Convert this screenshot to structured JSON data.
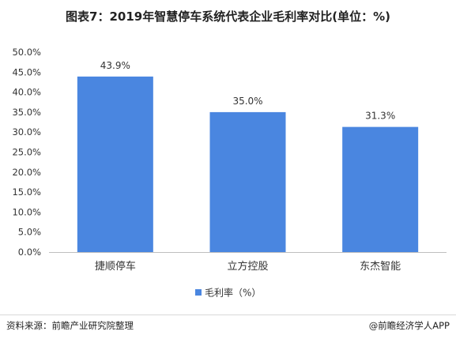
{
  "title": "图表7：2019年智慧停车系统代表企业毛利率对比(单位：%)",
  "footer": {
    "source": "资料来源：前瞻产业研究院整理",
    "brand": "@前瞻经济学人APP"
  },
  "colors": {
    "bar": "#4a86e0",
    "grid": "#d9d9d9"
  },
  "chart_data": {
    "type": "bar",
    "categories": [
      "捷顺停车",
      "立方控股",
      "东杰智能"
    ],
    "values": [
      43.9,
      35.0,
      31.3
    ],
    "data_labels": [
      "43.9%",
      "35.0%",
      "31.3%"
    ],
    "y_ticks": [
      "0.0%",
      "5.0%",
      "10.0%",
      "15.0%",
      "20.0%",
      "25.0%",
      "30.0%",
      "35.0%",
      "40.0%",
      "45.0%",
      "50.0%"
    ],
    "ylim": [
      0,
      50
    ],
    "grid": false,
    "legend": {
      "label": "毛利率（%）",
      "placement": "bottom"
    },
    "xlabel": "",
    "ylabel": ""
  }
}
